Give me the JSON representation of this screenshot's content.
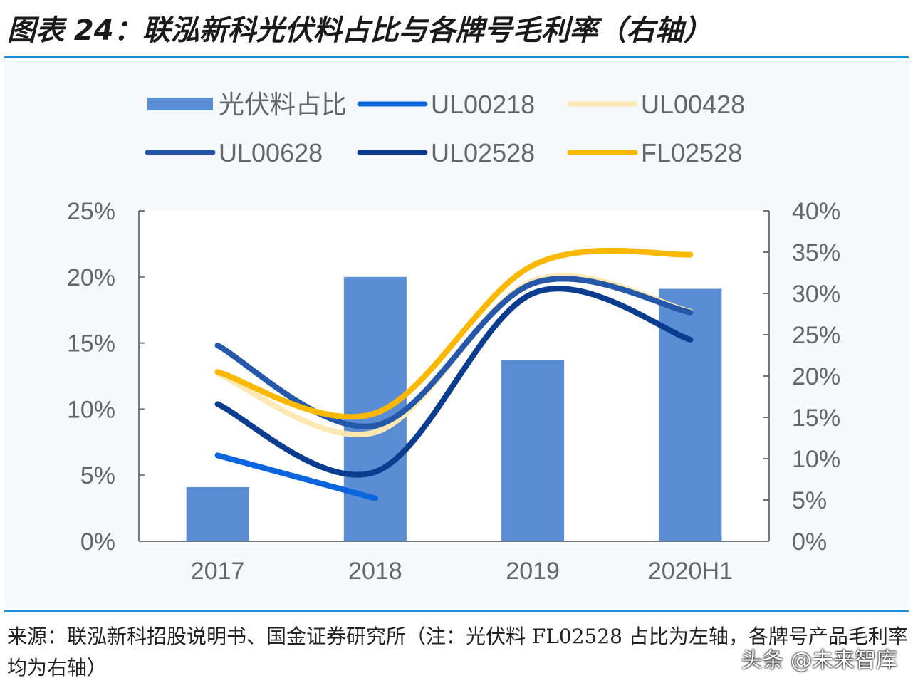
{
  "title": "图表 24：联泓新科光伏料占比与各牌号毛利率（右轴）",
  "source": "来源：联泓新科招股说明书、国金证券研究所（注：光伏料 FL02528 占比为左轴，各牌号产品毛利率均为右轴）",
  "watermark": "头条 @未来智库",
  "chart_data": {
    "type": "bar+line",
    "categories": [
      "2017",
      "2018",
      "2019",
      "2020H1"
    ],
    "left_axis": {
      "ticks": [
        "0%",
        "5%",
        "10%",
        "15%",
        "20%",
        "25%"
      ],
      "range": [
        0,
        25
      ]
    },
    "right_axis": {
      "ticks": [
        "0%",
        "5%",
        "10%",
        "15%",
        "20%",
        "25%",
        "30%",
        "35%",
        "40%"
      ],
      "range": [
        0,
        40
      ]
    },
    "legend_position": "top",
    "grid": false,
    "series": [
      {
        "name": "光伏料占比",
        "type": "bar",
        "axis": "left",
        "color": "#5a8dd4",
        "values": [
          4.1,
          20.0,
          13.7,
          19.1
        ]
      },
      {
        "name": "UL00218",
        "type": "line",
        "axis": "right",
        "color": "#0b66de",
        "values": [
          10.4,
          5.2,
          null,
          null
        ]
      },
      {
        "name": "UL00428",
        "type": "line",
        "axis": "right",
        "color": "#fbe8b2",
        "values": [
          20.3,
          13.2,
          31.5,
          27.8
        ]
      },
      {
        "name": "UL00628",
        "type": "line",
        "axis": "right",
        "color": "#2558a8",
        "values": [
          23.7,
          14.0,
          31.2,
          27.7
        ]
      },
      {
        "name": "UL02528",
        "type": "line",
        "axis": "right",
        "color": "#0a3d8f",
        "values": [
          16.6,
          8.4,
          30.0,
          24.4
        ]
      },
      {
        "name": "FL02528",
        "type": "line",
        "axis": "right",
        "color": "#fbb800",
        "values": [
          20.5,
          15.5,
          33.4,
          34.7
        ]
      }
    ]
  }
}
